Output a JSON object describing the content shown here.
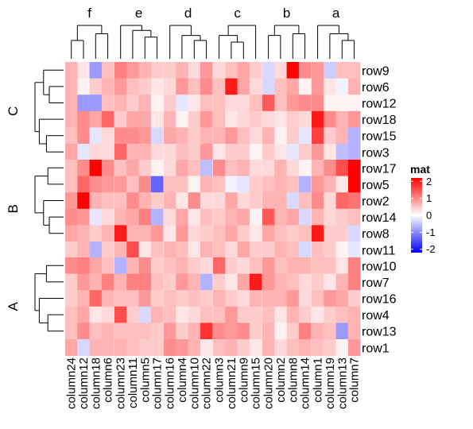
{
  "chart_data": {
    "type": "heatmap",
    "legend": {
      "title": "mat",
      "ticks": [
        2,
        1,
        0,
        -1,
        -2
      ],
      "tick_labels": [
        "2",
        "1",
        "0",
        "-1",
        "-2"
      ],
      "range": [
        -2.2,
        2.2
      ],
      "placement": "right",
      "colors": {
        "low": "#0000ff",
        "mid": "#ffffff",
        "high": "#ff0000"
      }
    },
    "column_groups": [
      {
        "label": "f",
        "columns": [
          "column24",
          "column12",
          "column18",
          "column6"
        ]
      },
      {
        "label": "e",
        "columns": [
          "column23",
          "column11",
          "column5",
          "column17"
        ]
      },
      {
        "label": "d",
        "columns": [
          "column16",
          "column4",
          "column10",
          "column22"
        ]
      },
      {
        "label": "c",
        "columns": [
          "column3",
          "column21",
          "column9",
          "column15"
        ]
      },
      {
        "label": "b",
        "columns": [
          "column20",
          "column2",
          "column8",
          "column14"
        ]
      },
      {
        "label": "a",
        "columns": [
          "column1",
          "column19",
          "column13",
          "column7"
        ]
      }
    ],
    "row_groups": [
      {
        "label": "C",
        "rows": [
          "row9",
          "row6",
          "row12",
          "row18",
          "row15",
          "row3"
        ]
      },
      {
        "label": "B",
        "rows": [
          "row17",
          "row5",
          "row2",
          "row14",
          "row8",
          "row11"
        ]
      },
      {
        "label": "A",
        "rows": [
          "row10",
          "row7",
          "row16",
          "row4",
          "row13",
          "row1"
        ]
      }
    ],
    "values": [
      [
        0.6,
        0.2,
        -0.8,
        0.5,
        1.0,
        0.8,
        0.6,
        0.4,
        0.4,
        0.6,
        0.3,
        0.8,
        0.3,
        0.5,
        0.7,
        0.4,
        -0.3,
        0.3,
        2.0,
        0.9,
        0.8,
        -0.4,
        0.5,
        0.5
      ],
      [
        0.6,
        0.1,
        0.4,
        0.6,
        0.8,
        0.5,
        0.4,
        0.2,
        0.3,
        0.8,
        0.5,
        0.9,
        0.5,
        1.8,
        0.7,
        0.3,
        -0.3,
        0.5,
        0.7,
        0.1,
        0.8,
        0.2,
        -0.1,
        0.6
      ],
      [
        0.6,
        -0.8,
        -0.8,
        0.5,
        0.6,
        0.4,
        0.6,
        0.1,
        0.4,
        -0.2,
        0.2,
        0.5,
        0.5,
        0.3,
        0.3,
        0.5,
        1.3,
        0.5,
        0.8,
        0.9,
        0.9,
        0.1,
        0.1,
        0.1
      ],
      [
        0.6,
        0.9,
        0.7,
        1.2,
        0.4,
        0.7,
        0.7,
        0.2,
        0.6,
        0.1,
        0.4,
        0.8,
        0.5,
        0.2,
        0.3,
        0.4,
        0.3,
        0.2,
        0.4,
        0.3,
        1.8,
        0.9,
        0.6,
        0.8
      ],
      [
        0.5,
        0.9,
        -0.2,
        0.3,
        0.9,
        0.9,
        0.8,
        -0.3,
        0.7,
        0.6,
        0.4,
        0.6,
        0.6,
        0.8,
        0.5,
        0.3,
        0.6,
        0.1,
        0.4,
        -0.2,
        1.5,
        0.4,
        0.6,
        -0.6
      ],
      [
        0.7,
        -0.2,
        0.3,
        0.3,
        1.2,
        0.6,
        0.6,
        0.3,
        0.3,
        0.5,
        0.4,
        0.8,
        0.2,
        0.4,
        0.4,
        0.1,
        0.4,
        0.2,
        -0.2,
        0.4,
        0.8,
        0.2,
        -0.5,
        -0.6
      ],
      [
        0.5,
        0.9,
        2.0,
        0.9,
        0.5,
        0.7,
        0.4,
        0.1,
        0.3,
        0.7,
        0.5,
        -0.5,
        0.9,
        0.5,
        0.6,
        0.3,
        0.3,
        0.6,
        0.3,
        0.1,
        0.6,
        0.9,
        1.4,
        2.2
      ],
      [
        0.5,
        1.2,
        0.9,
        0.8,
        0.8,
        0.5,
        0.9,
        -1.2,
        0.5,
        0.5,
        0.1,
        0.6,
        0.5,
        -0.1,
        -0.2,
        0.4,
        0.5,
        0.6,
        0.5,
        -0.6,
        0.8,
        0.6,
        0.2,
        2.2
      ],
      [
        0.8,
        2.2,
        0.6,
        0.5,
        0.5,
        0.9,
        0.6,
        0.4,
        0.6,
        0.2,
        0.9,
        0.3,
        0.3,
        0.7,
        0.3,
        0.4,
        0.6,
        0.6,
        -0.3,
        0.5,
        0.9,
        0.3,
        1.2,
        1.1
      ],
      [
        0.9,
        0.8,
        -0.2,
        0.3,
        0.6,
        0.7,
        1.0,
        -0.6,
        0.3,
        0.7,
        0.2,
        0.5,
        0.4,
        0.6,
        0.7,
        0.1,
        1.3,
        0.6,
        0.7,
        -0.3,
        0.6,
        0.3,
        0.4,
        0.5
      ],
      [
        0.7,
        0.6,
        0.4,
        0.6,
        1.8,
        0.6,
        0.6,
        0.8,
        0.2,
        0.8,
        0.3,
        0.4,
        0.5,
        0.7,
        0.4,
        0.2,
        0.7,
        0.5,
        0.4,
        0.5,
        1.8,
        0.4,
        0.4,
        -0.3
      ],
      [
        0.4,
        0.6,
        -0.6,
        0.4,
        0.6,
        1.4,
        0.2,
        0.5,
        0.6,
        0.5,
        0.2,
        0.6,
        0.5,
        0.3,
        0.7,
        0.4,
        0.4,
        0.6,
        0.5,
        -0.3,
        0.5,
        0.4,
        0.1,
        -0.2
      ],
      [
        0.9,
        1.0,
        0.7,
        0.5,
        -0.6,
        0.6,
        0.9,
        0.4,
        0.5,
        0.6,
        0.4,
        0.3,
        1.2,
        0.4,
        0.3,
        0.5,
        0.8,
        0.5,
        0.6,
        0.6,
        0.5,
        0.5,
        0.2,
        1.0
      ],
      [
        0.4,
        0.8,
        0.6,
        1.0,
        0.6,
        1.0,
        1.0,
        0.5,
        0.4,
        0.8,
        0.6,
        -0.6,
        0.4,
        0.2,
        0.7,
        1.8,
        0.8,
        0.6,
        0.5,
        0.3,
        0.4,
        0.2,
        0.6,
        1.0
      ],
      [
        0.4,
        0.6,
        1.2,
        0.6,
        0.5,
        0.5,
        0.8,
        0.4,
        0.5,
        0.4,
        0.5,
        0.4,
        0.6,
        0.4,
        0.3,
        0.6,
        0.6,
        0.6,
        0.8,
        0.3,
        0.5,
        0.8,
        0.7,
        0.4
      ],
      [
        0.5,
        0.7,
        0.2,
        0.3,
        1.4,
        0.4,
        -0.3,
        0.6,
        0.5,
        0.2,
        0.3,
        0.5,
        0.5,
        0.8,
        0.4,
        0.4,
        0.5,
        0.2,
        0.6,
        0.4,
        0.2,
        0.4,
        0.5,
        0.6
      ],
      [
        0.5,
        0.9,
        0.5,
        0.6,
        0.5,
        0.5,
        0.5,
        0.4,
        0.8,
        0.4,
        0.6,
        1.6,
        0.9,
        0.8,
        0.9,
        0.4,
        0.6,
        0.1,
        0.4,
        1.0,
        0.6,
        0.5,
        -0.8,
        0.6
      ],
      [
        0.7,
        -0.3,
        0.6,
        0.6,
        0.6,
        0.5,
        0.4,
        0.4,
        0.9,
        0.8,
        0.6,
        0.2,
        0.5,
        0.6,
        0.4,
        0.2,
        0.6,
        0.3,
        0.5,
        0.6,
        0.5,
        0.4,
        0.1,
        0.8
      ]
    ]
  }
}
